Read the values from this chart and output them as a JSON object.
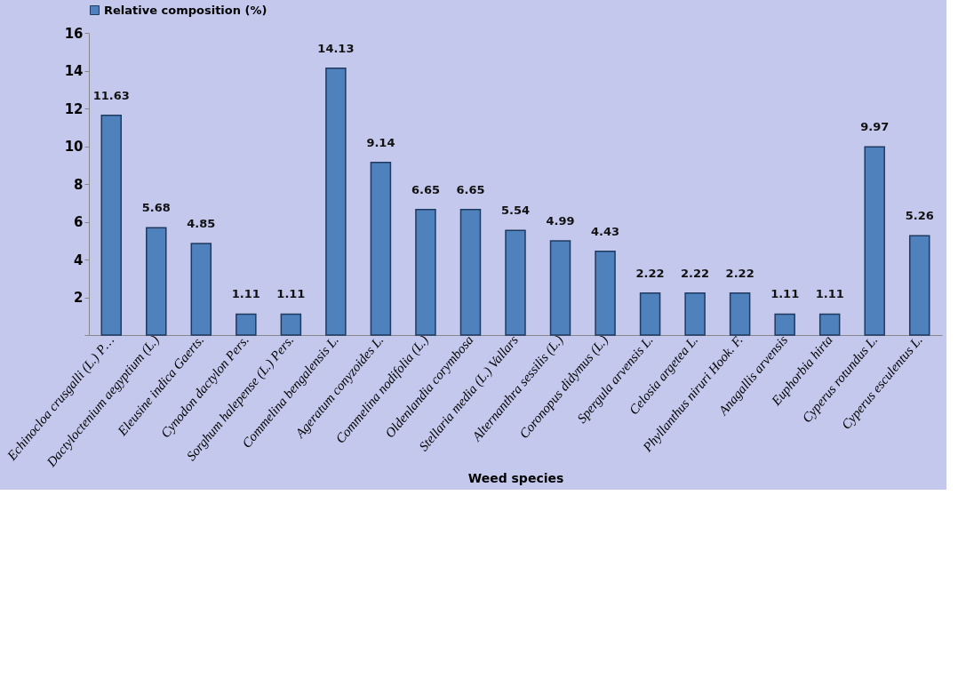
{
  "chart_data": {
    "type": "bar",
    "xlabel": "Weed species",
    "legend": "top",
    "data_labels": true,
    "grid": false,
    "categories": [
      "Echinocloa crusgalli (L.) P…",
      "Dactyloctenium aegyptium (L.)",
      "Eleusine indica Gaerts.",
      "Cynodon dactylon Pers.",
      "Sorghum halepense (L.) Pers.",
      "Commelina bengalensis L.",
      "Ageratum conyzoides L.",
      "Commelina nodifolia (L.)",
      "Oldenlandia corymbosa",
      "Stellaria media (L.) Vallars",
      "Alternanthra sessilis (L.)",
      "Coronopus didymus (L.)",
      "Spergula arvensis L.",
      "Celosia argetea L.",
      "Phyllanthus niruri Hook. F.",
      "Anagallis arvensis",
      "Euphorbia hirta",
      "Cyperus rotundus L.",
      "Cyperus esculentus L."
    ],
    "series": [
      {
        "name": "Relative composition (%)",
        "color": "#4f81bd",
        "values": [
          11.63,
          5.68,
          4.85,
          1.11,
          1.11,
          14.13,
          9.14,
          6.65,
          6.65,
          5.54,
          4.99,
          4.43,
          2.22,
          2.22,
          2.22,
          1.11,
          1.11,
          9.97,
          5.26
        ]
      }
    ],
    "ylim": [
      0,
      16
    ],
    "yticks": [
      {
        "value": 0,
        "label": null
      },
      2,
      4,
      6,
      8,
      10,
      12,
      14,
      16
    ]
  }
}
